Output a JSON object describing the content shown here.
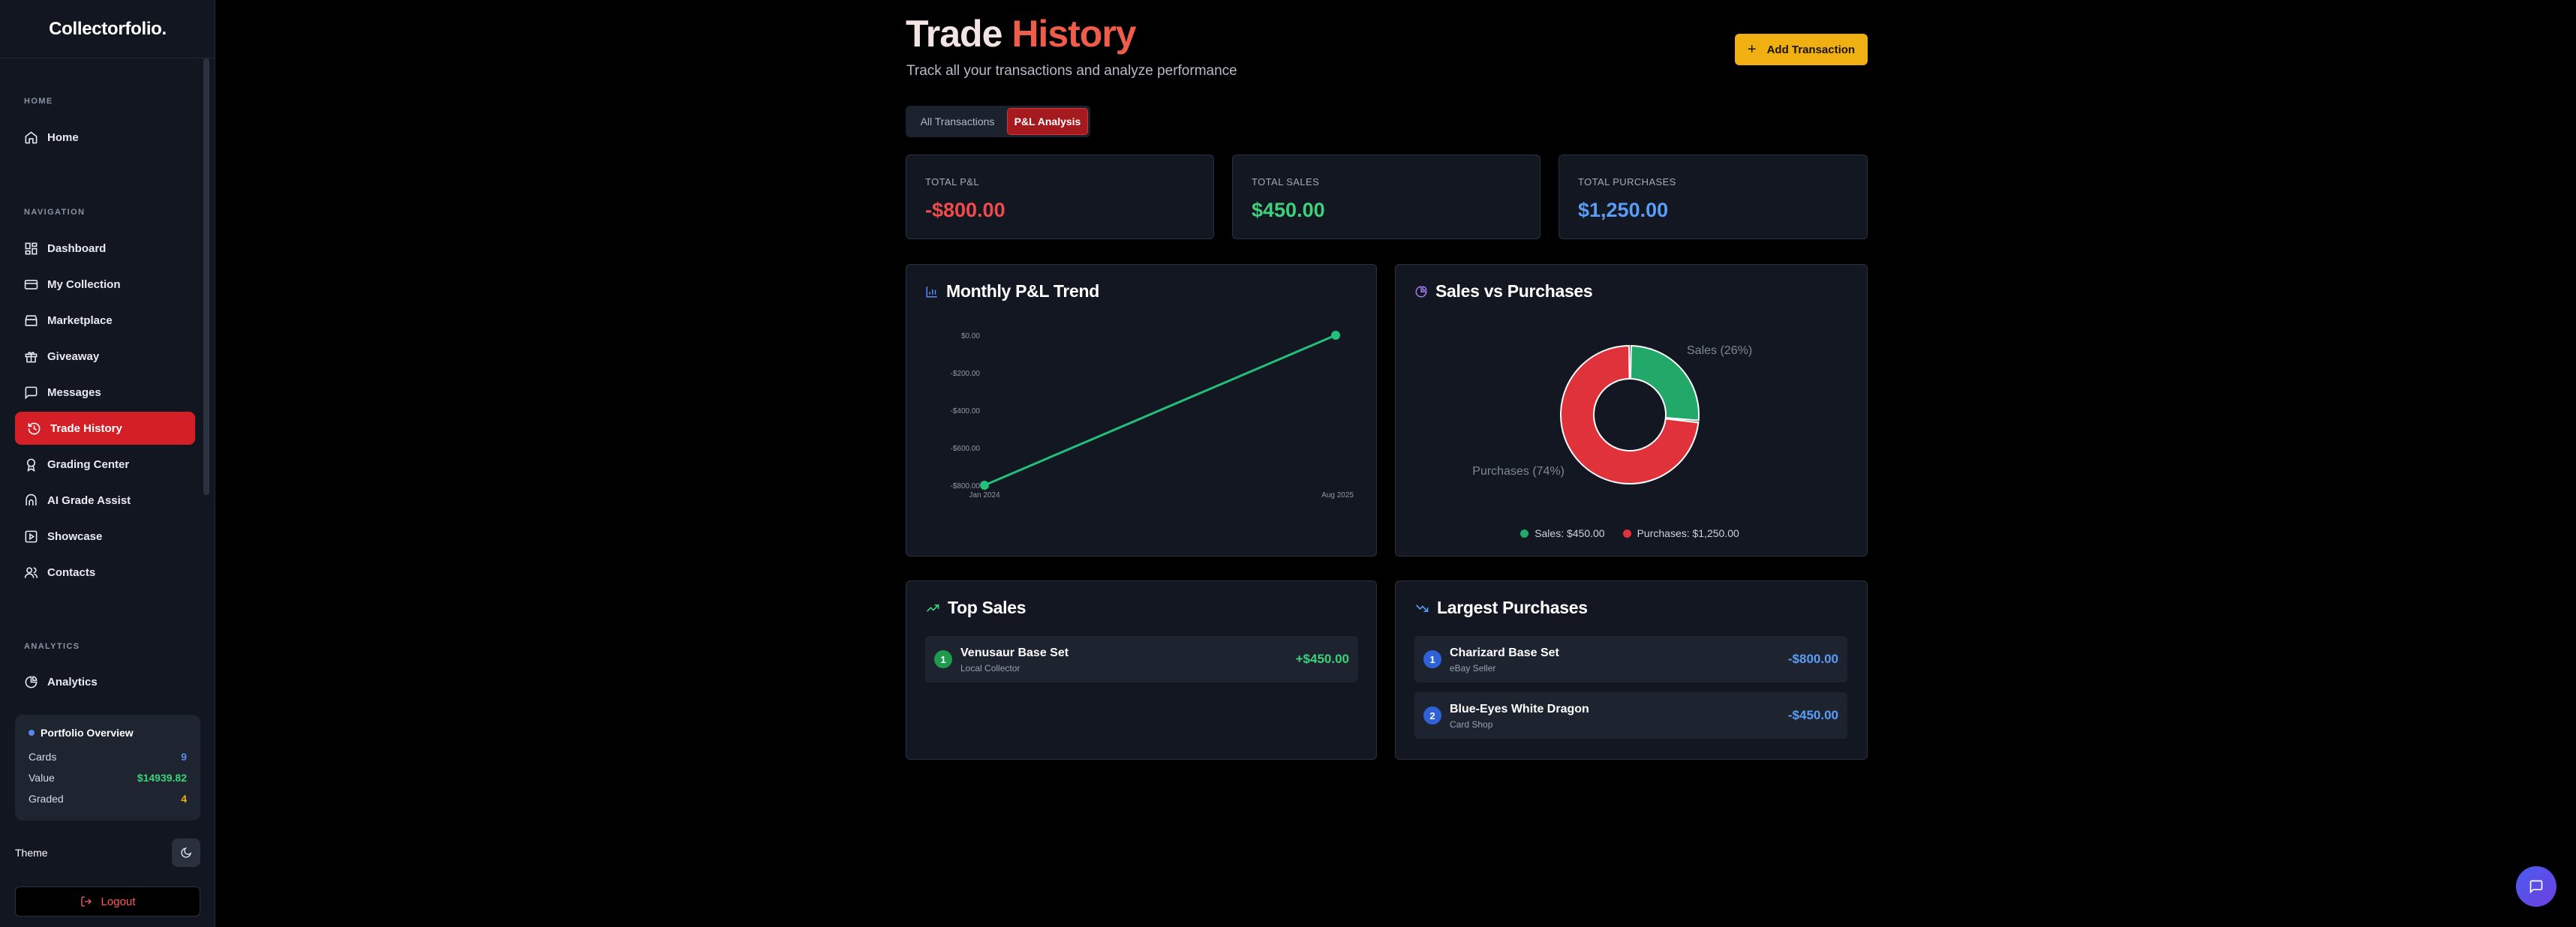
{
  "app": {
    "logo": "Collectorfolio."
  },
  "sidebar": {
    "sections": {
      "home": "HOME",
      "navigation": "NAVIGATION",
      "analytics": "ANALYTICS"
    },
    "home_item": "Home",
    "nav_items": [
      {
        "label": "Dashboard",
        "icon": "grid-icon"
      },
      {
        "label": "My Collection",
        "icon": "card-icon"
      },
      {
        "label": "Marketplace",
        "icon": "store-icon"
      },
      {
        "label": "Giveaway",
        "icon": "gift-icon"
      },
      {
        "label": "Messages",
        "icon": "message-icon"
      },
      {
        "label": "Trade History",
        "icon": "history-icon",
        "active": true
      },
      {
        "label": "Grading Center",
        "icon": "award-icon"
      },
      {
        "label": "AI Grade Assist",
        "icon": "ai-icon"
      },
      {
        "label": "Showcase",
        "icon": "showcase-icon"
      },
      {
        "label": "Contacts",
        "icon": "users-icon"
      }
    ],
    "analytics_item": "Analytics",
    "portfolio": {
      "title": "Portfolio Overview",
      "rows": [
        {
          "label": "Cards",
          "value": "9",
          "color": "#5b8cf5"
        },
        {
          "label": "Value",
          "value": "$14939.82",
          "color": "#3ed17a"
        },
        {
          "label": "Graded",
          "value": "4",
          "color": "#f0b012"
        }
      ]
    },
    "theme_label": "Theme",
    "logout_label": "Logout"
  },
  "header": {
    "title_part1": "Trade",
    "title_part2": "History",
    "subtitle": "Track all your transactions and analyze performance",
    "add_button": "Add Transaction"
  },
  "tabs": [
    {
      "label": "All Transactions",
      "active": false
    },
    {
      "label": "P&L Analysis",
      "active": true
    }
  ],
  "stats": [
    {
      "label": "TOTAL P&L",
      "value": "-$800.00",
      "color": "#ef4b4b"
    },
    {
      "label": "TOTAL SALES",
      "value": "$450.00",
      "color": "#3ed17a"
    },
    {
      "label": "TOTAL PURCHASES",
      "value": "$1,250.00",
      "color": "#5b9cf5"
    }
  ],
  "trend_panel": {
    "title": "Monthly P&L Trend"
  },
  "donut_panel": {
    "title": "Sales vs Purchases"
  },
  "chart_data": [
    {
      "type": "line",
      "x": [
        "Jan 2024",
        "Aug 2025"
      ],
      "series": [
        {
          "values": [
            -800,
            0
          ],
          "color": "#22c07a"
        }
      ],
      "yticks": [
        "$0.00",
        "-$200.00",
        "-$400.00",
        "-$600.00",
        "-$800.00"
      ],
      "ylim": [
        -800,
        0
      ],
      "title": "",
      "xlabel": "",
      "ylabel": ""
    },
    {
      "type": "pie",
      "donut": true,
      "slices": [
        {
          "label": "Sales (26%)",
          "value": 450,
          "color": "#22a869"
        },
        {
          "label": "Purchases (74%)",
          "value": 1250,
          "color": "#e0323a"
        }
      ],
      "legend": [
        "Sales: $450.00",
        "Purchases: $1,250.00"
      ]
    }
  ],
  "top_sales": {
    "title": "Top Sales",
    "items": [
      {
        "rank": "1",
        "name": "Venusaur Base Set",
        "sub": "Local Collector",
        "amount": "+$450.00"
      }
    ]
  },
  "largest_purchases": {
    "title": "Largest Purchases",
    "items": [
      {
        "rank": "1",
        "name": "Charizard Base Set",
        "sub": "eBay Seller",
        "amount": "-$800.00"
      },
      {
        "rank": "2",
        "name": "Blue-Eyes White Dragon",
        "sub": "Card Shop",
        "amount": "-$450.00"
      }
    ]
  }
}
